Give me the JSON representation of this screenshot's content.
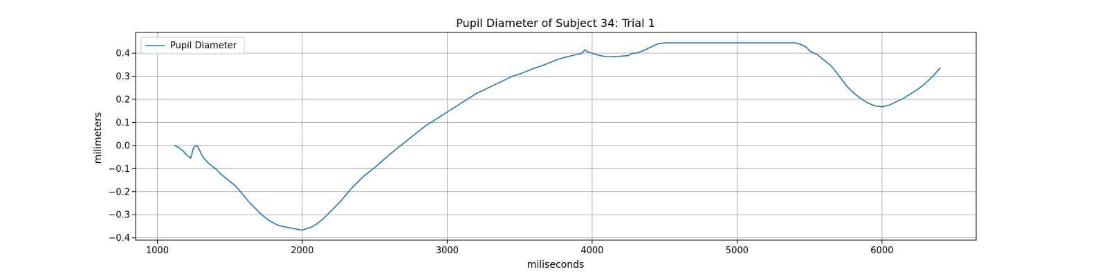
{
  "chart_data": {
    "type": "line",
    "title": "Pupil Diameter of Subject 34: Trial 1",
    "xlabel": "miliseconds",
    "ylabel": "milimeters",
    "xlim": [
      850,
      6650
    ],
    "ylim": [
      -0.41,
      0.49
    ],
    "xticks": [
      1000,
      2000,
      3000,
      4000,
      5000,
      6000
    ],
    "yticks": [
      -0.4,
      -0.3,
      -0.2,
      -0.1,
      0.0,
      0.1,
      0.2,
      0.3,
      0.4
    ],
    "xtick_labels": [
      "1000",
      "2000",
      "3000",
      "4000",
      "5000",
      "6000"
    ],
    "ytick_labels": [
      "−0.4",
      "−0.3",
      "−0.2",
      "−0.1",
      "0.0",
      "0.1",
      "0.2",
      "0.3",
      "0.4"
    ],
    "grid": true,
    "legend_position": "upper-left",
    "series": [
      {
        "name": "Pupil Diameter",
        "color": "#1f77b4",
        "x": [
          1120,
          1150,
          1180,
          1200,
          1230,
          1250,
          1265,
          1280,
          1295,
          1310,
          1330,
          1350,
          1380,
          1410,
          1440,
          1470,
          1500,
          1530,
          1560,
          1600,
          1640,
          1680,
          1720,
          1760,
          1800,
          1830,
          1860,
          1900,
          1940,
          1980,
          2000,
          2020,
          2060,
          2100,
          2140,
          2180,
          2220,
          2260,
          2300,
          2340,
          2380,
          2420,
          2460,
          2500,
          2550,
          2600,
          2650,
          2700,
          2750,
          2800,
          2850,
          2900,
          2950,
          3000,
          3050,
          3100,
          3150,
          3200,
          3250,
          3300,
          3350,
          3400,
          3450,
          3500,
          3550,
          3600,
          3650,
          3700,
          3750,
          3800,
          3850,
          3900,
          3930,
          3950,
          3970,
          4000,
          4050,
          4100,
          4150,
          4200,
          4250,
          4280,
          4300,
          4350,
          4400,
          4450,
          4500,
          4600,
          4800,
          5000,
          5200,
          5400,
          5430,
          5450,
          5480,
          5500,
          5550,
          5600,
          5650,
          5700,
          5730,
          5760,
          5800,
          5850,
          5900,
          5950,
          6000,
          6050,
          6100,
          6150,
          6200,
          6250,
          6300,
          6350,
          6400
        ],
        "values": [
          0.0,
          -0.01,
          -0.025,
          -0.04,
          -0.055,
          -0.01,
          0.0,
          -0.005,
          -0.025,
          -0.045,
          -0.062,
          -0.075,
          -0.09,
          -0.105,
          -0.125,
          -0.14,
          -0.155,
          -0.17,
          -0.19,
          -0.22,
          -0.25,
          -0.275,
          -0.3,
          -0.32,
          -0.335,
          -0.345,
          -0.35,
          -0.355,
          -0.36,
          -0.365,
          -0.367,
          -0.362,
          -0.355,
          -0.34,
          -0.32,
          -0.295,
          -0.27,
          -0.245,
          -0.215,
          -0.185,
          -0.16,
          -0.135,
          -0.115,
          -0.095,
          -0.068,
          -0.04,
          -0.015,
          0.01,
          0.035,
          0.06,
          0.085,
          0.105,
          0.125,
          0.145,
          0.165,
          0.185,
          0.205,
          0.225,
          0.24,
          0.255,
          0.27,
          0.285,
          0.3,
          0.31,
          0.322,
          0.335,
          0.345,
          0.357,
          0.37,
          0.38,
          0.388,
          0.395,
          0.4,
          0.415,
          0.405,
          0.4,
          0.39,
          0.385,
          0.385,
          0.387,
          0.39,
          0.4,
          0.4,
          0.41,
          0.425,
          0.44,
          0.445,
          0.445,
          0.445,
          0.445,
          0.445,
          0.445,
          0.44,
          0.435,
          0.425,
          0.41,
          0.395,
          0.37,
          0.345,
          0.305,
          0.28,
          0.255,
          0.23,
          0.205,
          0.185,
          0.172,
          0.168,
          0.175,
          0.19,
          0.205,
          0.225,
          0.245,
          0.27,
          0.3,
          0.335
        ]
      }
    ]
  }
}
